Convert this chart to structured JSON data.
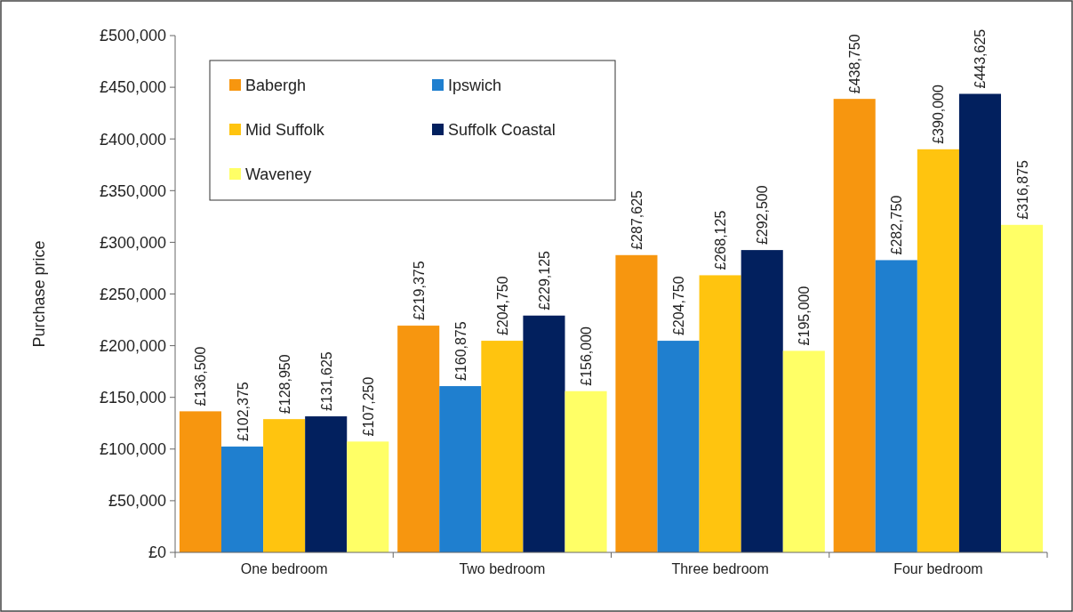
{
  "chart_data": {
    "type": "bar",
    "ylabel": "Purchase price",
    "categories": [
      "One bedroom",
      "Two bedroom",
      "Three bedroom",
      "Four bedroom"
    ],
    "series": [
      {
        "name": "Babergh",
        "color": "#f7960f",
        "values": [
          136500,
          219375,
          287625,
          438750
        ],
        "value_labels": [
          "£136,500",
          "£219,375",
          "£287,625",
          "£438,750"
        ]
      },
      {
        "name": "Ipswich",
        "color": "#1f7fcf",
        "values": [
          102375,
          160875,
          204750,
          282750
        ],
        "value_labels": [
          "£102,375",
          "£160,875",
          "£204,750",
          "£282,750"
        ]
      },
      {
        "name": "Mid Suffolk",
        "color": "#ffc40f",
        "values": [
          128950,
          204750,
          268125,
          390000
        ],
        "value_labels": [
          "£128,950",
          "£204,750",
          "£268,125",
          "£390,000"
        ]
      },
      {
        "name": "Suffolk Coastal",
        "color": "#02205e",
        "values": [
          131625,
          229125,
          292500,
          443625
        ],
        "value_labels": [
          "£131,625",
          "£229,125",
          "£292,500",
          "£443,625"
        ]
      },
      {
        "name": "Waveney",
        "color": "#ffff66",
        "values": [
          107250,
          156000,
          195000,
          316875
        ],
        "value_labels": [
          "£107,250",
          "£156,000",
          "£195,000",
          "£316,875"
        ]
      }
    ],
    "ylim": [
      0,
      500000
    ],
    "yticks": [
      {
        "value": 0,
        "label": "£0"
      },
      {
        "value": 50000,
        "label": "£50,000"
      },
      {
        "value": 100000,
        "label": "£100,000"
      },
      {
        "value": 150000,
        "label": "£150,000"
      },
      {
        "value": 200000,
        "label": "£200,000"
      },
      {
        "value": 250000,
        "label": "£250,000"
      },
      {
        "value": 300000,
        "label": "£300,000"
      },
      {
        "value": 350000,
        "label": "£350,000"
      },
      {
        "value": 400000,
        "label": "£400,000"
      },
      {
        "value": 450000,
        "label": "£450,000"
      },
      {
        "value": 500000,
        "label": "£500,000"
      }
    ],
    "legend": "top left",
    "grid": false
  }
}
